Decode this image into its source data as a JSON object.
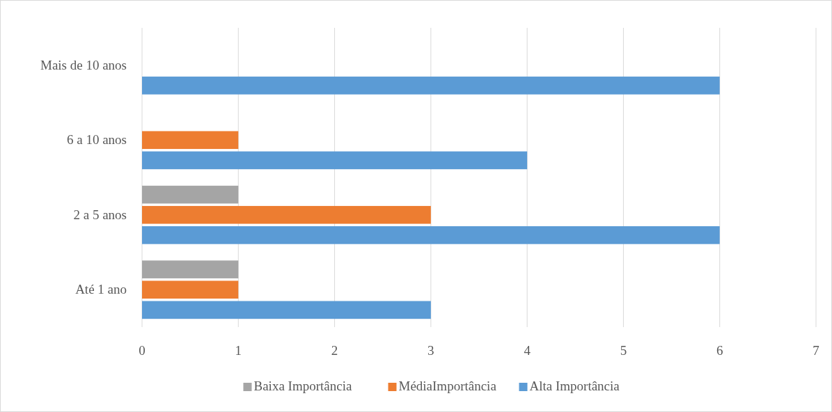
{
  "chart_data": {
    "type": "bar",
    "orientation": "horizontal",
    "categories": [
      "Mais de 10 anos",
      "6 a 10 anos",
      "2 a 5 anos",
      "Até 1 ano"
    ],
    "series": [
      {
        "name": "Baixa Importância",
        "color": "#a5a5a5",
        "values": [
          0,
          0,
          1,
          1
        ]
      },
      {
        "name": "MédiaImportância",
        "color": "#ed7d31",
        "values": [
          0,
          1,
          3,
          1
        ]
      },
      {
        "name": "Alta Importância",
        "color": "#5b9bd5",
        "values": [
          6,
          4,
          6,
          3
        ]
      }
    ],
    "xlim": [
      0,
      7
    ],
    "xticks": [
      0,
      1,
      2,
      3,
      4,
      5,
      6,
      7
    ],
    "grid": "x",
    "legend": "bottom"
  }
}
